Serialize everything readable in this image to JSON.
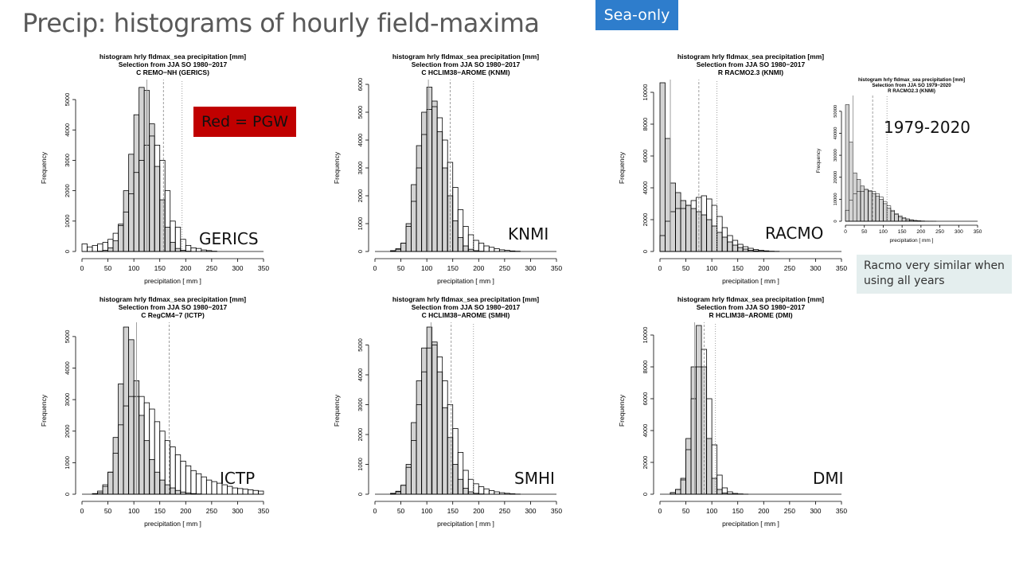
{
  "slide": {
    "title": "Precip: histograms of hourly field-maxima",
    "badge": "Sea-only",
    "legend_note": "Red = PGW",
    "note": "Racmo very similar when using all years",
    "inset_years": "1979-2020"
  },
  "chart_data": [
    {
      "id": "gerics",
      "type": "bar",
      "title": [
        "histogram hrly fldmax_sea precipitation [mm]",
        "Selection from JJA SO 1980−2017",
        "C REMO−NH (GERICS)"
      ],
      "xlabel": "precipitation  [ mm ]",
      "ylabel": "Frequency",
      "label": "GERICS",
      "xlim": [
        0,
        350
      ],
      "ylim": [
        0,
        5500
      ],
      "xticks": [
        0,
        50,
        100,
        150,
        200,
        250,
        300,
        350
      ],
      "yticks": [
        0,
        1000,
        2000,
        3000,
        4000,
        5000
      ],
      "bin_width": 10,
      "series": [
        {
          "values": [
            0,
            0,
            0,
            10,
            40,
            120,
            350,
            900,
            2000,
            3200,
            4500,
            5400,
            5300,
            4200,
            2800,
            1700,
            800,
            300,
            100,
            40,
            10,
            0,
            0,
            0,
            0,
            0,
            0,
            0,
            0,
            0,
            0,
            0,
            0,
            0,
            0
          ],
          "fill": "#d3d3d3"
        },
        {
          "values": [
            250,
            150,
            200,
            250,
            300,
            400,
            600,
            850,
            1300,
            1900,
            2600,
            3000,
            3500,
            3800,
            3500,
            3000,
            2000,
            1000,
            800,
            400,
            200,
            120,
            100,
            50,
            30,
            10,
            0,
            0,
            0,
            0,
            0,
            0,
            0,
            0,
            0
          ],
          "fill": "none"
        }
      ],
      "vlines": [
        {
          "x": 125,
          "style": "solid"
        },
        {
          "x": 157,
          "style": "dashed"
        },
        {
          "x": 193,
          "style": "dotted"
        }
      ]
    },
    {
      "id": "knmi",
      "type": "bar",
      "title": [
        "histogram hrly fldmax_sea precipitation [mm]",
        "Selection from JJA SO 1980−2017",
        "C HCLIM38−AROME (KNMI)"
      ],
      "xlabel": "precipitation  [ mm ]",
      "ylabel": "Frequency",
      "label": "KNMI",
      "xlim": [
        0,
        350
      ],
      "ylim": [
        0,
        6000
      ],
      "xticks": [
        0,
        50,
        100,
        150,
        200,
        250,
        300,
        350
      ],
      "yticks": [
        0,
        1000,
        2000,
        3000,
        4000,
        5000,
        6000
      ],
      "bin_width": 10,
      "series": [
        {
          "values": [
            0,
            0,
            0,
            20,
            80,
            300,
            1000,
            2400,
            3800,
            5000,
            5900,
            5400,
            4300,
            3000,
            2000,
            1100,
            500,
            200,
            80,
            30,
            10,
            0,
            0,
            0,
            0,
            0,
            0,
            0,
            0,
            0,
            0,
            0,
            0,
            0,
            0
          ],
          "fill": "#d3d3d3"
        },
        {
          "values": [
            0,
            0,
            0,
            30,
            100,
            300,
            900,
            1800,
            3000,
            4200,
            5100,
            5200,
            4800,
            4000,
            3200,
            2300,
            1500,
            900,
            600,
            400,
            300,
            200,
            150,
            100,
            60,
            40,
            20,
            10,
            0,
            0,
            0,
            0,
            0,
            0,
            0
          ],
          "fill": "none"
        }
      ],
      "vlines": [
        {
          "x": 103,
          "style": "solid"
        },
        {
          "x": 145,
          "style": "dashed"
        },
        {
          "x": 190,
          "style": "dotted"
        }
      ]
    },
    {
      "id": "racmo",
      "type": "bar",
      "title": [
        "histogram hrly fldmax_sea precipitation [mm]",
        "Selection from JJA SO 1980−2017",
        "R RACMO2.3 (KNMI)"
      ],
      "xlabel": "precipitation  [ mm ]",
      "ylabel": "Frequency",
      "label": "RACMO",
      "xlim": [
        0,
        350
      ],
      "ylim": [
        0,
        10500
      ],
      "xticks": [
        0,
        50,
        100,
        150,
        200,
        250,
        300,
        350
      ],
      "yticks": [
        0,
        2000,
        4000,
        6000,
        8000,
        10000
      ],
      "bin_width": 10,
      "series": [
        {
          "values": [
            10600,
            7100,
            4300,
            3700,
            3200,
            2900,
            2700,
            2500,
            2300,
            2000,
            1600,
            1200,
            900,
            600,
            400,
            250,
            150,
            80,
            40,
            20,
            10,
            0,
            0,
            0,
            0,
            0,
            0,
            0,
            0,
            0,
            0,
            0,
            0,
            0,
            0
          ],
          "fill": "#d3d3d3"
        },
        {
          "values": [
            1000,
            1900,
            2500,
            2700,
            2700,
            2900,
            3200,
            3400,
            3500,
            3300,
            2900,
            2200,
            1500,
            1000,
            700,
            450,
            300,
            200,
            120,
            80,
            40,
            20,
            10,
            0,
            0,
            0,
            0,
            0,
            0,
            0,
            0,
            0,
            0,
            0,
            0
          ],
          "fill": "none"
        }
      ],
      "vlines": [
        {
          "x": 20,
          "style": "solid"
        },
        {
          "x": 75,
          "style": "dashed"
        },
        {
          "x": 110,
          "style": "dotted"
        }
      ]
    },
    {
      "id": "racmo_all",
      "type": "bar",
      "title": [
        "histogram hrly fldmax_sea precipitation [mm]",
        "Selection from JJA SO 1979−2020",
        "R RACMO2.3 (KNMI)"
      ],
      "xlabel": "precipitation  [ mm ]",
      "ylabel": "Frequency",
      "xlim": [
        0,
        350
      ],
      "ylim": [
        0,
        55000
      ],
      "xticks": [
        0,
        50,
        100,
        150,
        200,
        250,
        300,
        350
      ],
      "yticks": [
        0,
        10000,
        20000,
        30000,
        40000,
        50000
      ],
      "bin_width": 10,
      "series": [
        {
          "values": [
            53000,
            36000,
            22000,
            19000,
            16000,
            14500,
            13500,
            12500,
            11500,
            10000,
            8000,
            6000,
            4500,
            3000,
            2000,
            1200,
            700,
            400,
            200,
            100,
            50,
            0,
            0,
            0,
            0,
            0,
            0,
            0,
            0,
            0,
            0,
            0,
            0,
            0,
            0
          ],
          "fill": "#d3d3d3"
        },
        {
          "values": [
            5000,
            9500,
            12500,
            13500,
            13500,
            14500,
            14000,
            13500,
            12500,
            11000,
            9000,
            7000,
            5000,
            3500,
            2500,
            1700,
            1100,
            700,
            400,
            250,
            150,
            80,
            40,
            20,
            0,
            0,
            0,
            0,
            0,
            0,
            0,
            0,
            0,
            0,
            0
          ],
          "fill": "none"
        }
      ],
      "vlines": [
        {
          "x": 20,
          "style": "solid"
        },
        {
          "x": 72,
          "style": "dashed"
        },
        {
          "x": 110,
          "style": "dotted"
        }
      ]
    },
    {
      "id": "ictp",
      "type": "bar",
      "title": [
        "histogram hrly fldmax_sea precipitation [mm]",
        "Selection from JJA SO 1980−2017",
        "C RegCM4−7 (ICTP)"
      ],
      "xlabel": "precipitation  [ mm ]",
      "ylabel": "Frequency",
      "label": "ICTP",
      "xlim": [
        0,
        350
      ],
      "ylim": [
        0,
        5300
      ],
      "xticks": [
        0,
        50,
        100,
        150,
        200,
        250,
        300,
        350
      ],
      "yticks": [
        0,
        1000,
        2000,
        3000,
        4000,
        5000
      ],
      "bin_width": 10,
      "series": [
        {
          "values": [
            0,
            0,
            0,
            50,
            250,
            700,
            1800,
            3500,
            5300,
            4900,
            3600,
            2500,
            1700,
            1100,
            700,
            450,
            300,
            200,
            120,
            70,
            40,
            20,
            10,
            0,
            0,
            0,
            0,
            0,
            0,
            0,
            0,
            0,
            0,
            0,
            0
          ],
          "fill": "#d3d3d3"
        },
        {
          "values": [
            0,
            0,
            20,
            100,
            300,
            700,
            1300,
            2200,
            2800,
            3100,
            3100,
            3100,
            2900,
            2700,
            2300,
            2000,
            1700,
            1500,
            1250,
            1050,
            900,
            750,
            650,
            550,
            450,
            400,
            350,
            300,
            250,
            200,
            180,
            160,
            140,
            120,
            100
          ],
          "fill": "none"
        }
      ],
      "vlines": [
        {
          "x": 105,
          "style": "solid"
        },
        {
          "x": 168,
          "style": "dashed"
        }
      ]
    },
    {
      "id": "smhi",
      "type": "bar",
      "title": [
        "histogram hrly fldmax_sea precipitation [mm]",
        "Selection from JJA SO 1980−2017",
        "C HCLIM38−AROME (SMHI)"
      ],
      "xlabel": "precipitation  [ mm ]",
      "ylabel": "Frequency",
      "label": "SMHI",
      "xlim": [
        0,
        350
      ],
      "ylim": [
        0,
        5600
      ],
      "xticks": [
        0,
        50,
        100,
        150,
        200,
        250,
        300,
        350
      ],
      "yticks": [
        0,
        1000,
        2000,
        3000,
        4000,
        5000
      ],
      "bin_width": 10,
      "series": [
        {
          "values": [
            0,
            0,
            0,
            20,
            80,
            300,
            1000,
            2400,
            3800,
            4900,
            5600,
            5100,
            4100,
            2900,
            1900,
            1000,
            500,
            200,
            80,
            30,
            10,
            0,
            0,
            0,
            0,
            0,
            0,
            0,
            0,
            0,
            0,
            0,
            0,
            0,
            0
          ],
          "fill": "#d3d3d3"
        },
        {
          "values": [
            0,
            0,
            0,
            30,
            100,
            300,
            900,
            1800,
            3000,
            4100,
            4900,
            5000,
            4600,
            3800,
            3000,
            2200,
            1400,
            800,
            500,
            350,
            250,
            180,
            120,
            80,
            50,
            30,
            15,
            5,
            0,
            0,
            0,
            0,
            0,
            0,
            0
          ],
          "fill": "none"
        }
      ],
      "vlines": [
        {
          "x": 108,
          "style": "solid"
        },
        {
          "x": 147,
          "style": "dashed"
        },
        {
          "x": 190,
          "style": "dotted"
        }
      ]
    },
    {
      "id": "dmi",
      "type": "bar",
      "title": [
        "histogram hrly fldmax_sea precipitation [mm]",
        "Selection from JJA SO 1980−2017",
        "R HCLIM38−AROME (DMI)"
      ],
      "xlabel": "precipitation  [ mm ]",
      "ylabel": "Frequency",
      "label": "DMI",
      "xlim": [
        0,
        350
      ],
      "ylim": [
        0,
        10500
      ],
      "xticks": [
        0,
        50,
        100,
        150,
        200,
        250,
        300,
        350
      ],
      "yticks": [
        0,
        2000,
        4000,
        6000,
        8000,
        10000
      ],
      "bin_width": 10,
      "series": [
        {
          "values": [
            0,
            0,
            100,
            300,
            1000,
            3500,
            8000,
            10600,
            8000,
            3500,
            1000,
            300,
            80,
            20,
            5,
            0,
            0,
            0,
            0,
            0,
            0,
            0,
            0,
            0,
            0,
            0,
            0,
            0,
            0,
            0,
            0,
            0,
            0,
            0,
            0
          ],
          "fill": "#d3d3d3"
        },
        {
          "values": [
            0,
            0,
            100,
            300,
            900,
            2800,
            6000,
            8000,
            9100,
            6000,
            3100,
            1200,
            400,
            150,
            50,
            20,
            5,
            0,
            0,
            0,
            0,
            0,
            0,
            0,
            0,
            0,
            0,
            0,
            0,
            0,
            0,
            0,
            0,
            0,
            0
          ],
          "fill": "none"
        }
      ],
      "vlines": [
        {
          "x": 67,
          "style": "solid"
        },
        {
          "x": 85,
          "style": "dashed"
        },
        {
          "x": 107,
          "style": "dotted"
        }
      ]
    }
  ]
}
